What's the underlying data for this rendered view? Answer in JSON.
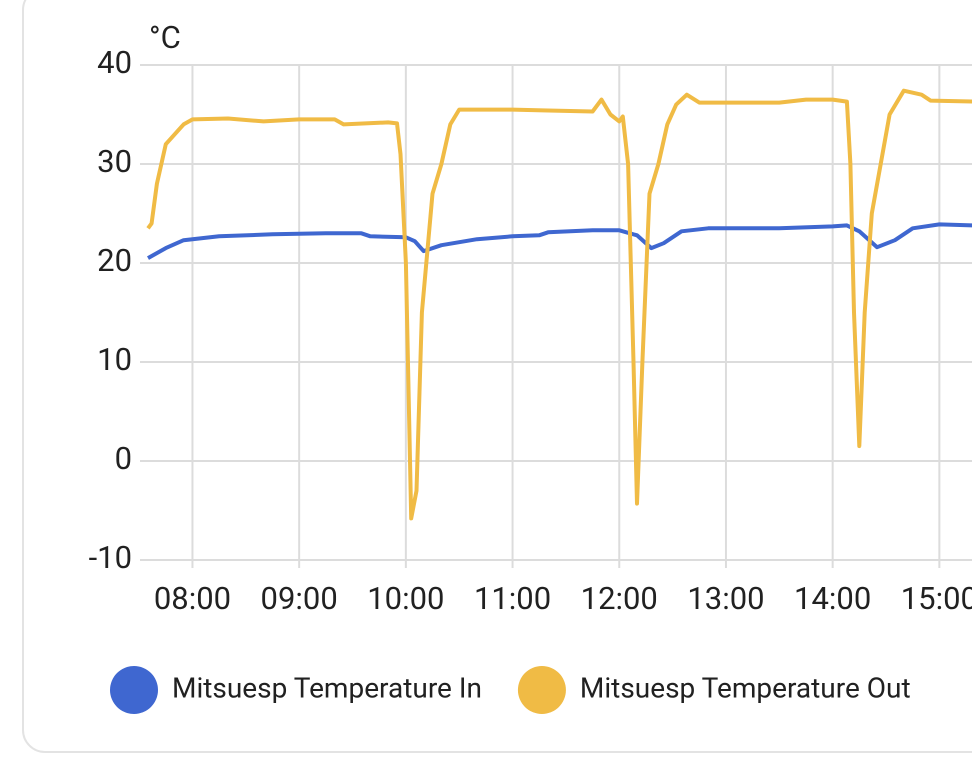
{
  "chart_data": {
    "type": "line",
    "y_axis_label": "°C",
    "ylim": [
      -10,
      40
    ],
    "yticks": [
      -10,
      0,
      10,
      20,
      30,
      40
    ],
    "xlim": [
      "07:35",
      "15:20"
    ],
    "xticks": [
      "08:00",
      "09:00",
      "10:00",
      "11:00",
      "12:00",
      "13:00",
      "14:00",
      "15:00"
    ],
    "grid": true,
    "legend": "bottom",
    "series": [
      {
        "name": "Mitsuesp Temperature In",
        "color": "#3f67d0",
        "x": [
          "07:35",
          "07:45",
          "07:55",
          "08:15",
          "08:45",
          "09:15",
          "09:35",
          "09:40",
          "10:00",
          "10:05",
          "10:10",
          "10:20",
          "10:40",
          "11:00",
          "11:15",
          "11:20",
          "11:45",
          "12:00",
          "12:10",
          "12:18",
          "12:25",
          "12:35",
          "12:50",
          "13:30",
          "14:00",
          "14:08",
          "14:15",
          "14:25",
          "14:35",
          "14:45",
          "15:00",
          "15:20"
        ],
        "values": [
          20.5,
          21.5,
          22.3,
          22.7,
          22.9,
          23.0,
          23.0,
          22.7,
          22.6,
          22.2,
          21.2,
          21.8,
          22.4,
          22.7,
          22.8,
          23.1,
          23.3,
          23.3,
          22.8,
          21.5,
          22.0,
          23.2,
          23.5,
          23.5,
          23.7,
          23.8,
          23.2,
          21.6,
          22.3,
          23.5,
          23.9,
          23.8
        ]
      },
      {
        "name": "Mitsuesp Temperature Out",
        "color": "#f0bb45",
        "x": [
          "07:35",
          "07:37",
          "07:40",
          "07:45",
          "07:55",
          "08:00",
          "08:20",
          "08:40",
          "09:00",
          "09:20",
          "09:25",
          "09:50",
          "09:55",
          "09:57",
          "10:00",
          "10:03",
          "10:06",
          "10:09",
          "10:15",
          "10:20",
          "10:25",
          "10:30",
          "10:45",
          "11:00",
          "11:20",
          "11:45",
          "11:50",
          "11:55",
          "12:00",
          "12:02",
          "12:05",
          "12:08",
          "12:10",
          "12:13",
          "12:17",
          "12:22",
          "12:27",
          "12:32",
          "12:38",
          "12:45",
          "13:00",
          "13:30",
          "13:45",
          "14:00",
          "14:08",
          "14:10",
          "14:12",
          "14:15",
          "14:18",
          "14:22",
          "14:27",
          "14:32",
          "14:40",
          "14:50",
          "14:55",
          "15:20"
        ],
        "values": [
          23.5,
          24.0,
          28,
          32,
          34,
          34.5,
          34.6,
          34.3,
          34.5,
          34.5,
          34.0,
          34.2,
          34.1,
          31,
          20,
          -5.8,
          -3,
          15,
          27,
          30,
          34,
          35.5,
          35.5,
          35.5,
          35.4,
          35.3,
          36.5,
          35,
          34.3,
          34.8,
          30,
          10,
          -4.3,
          10,
          27,
          30,
          34,
          36,
          37,
          36.2,
          36.2,
          36.2,
          36.5,
          36.5,
          36.3,
          30,
          15,
          1.5,
          15,
          25,
          30,
          35,
          37.4,
          37,
          36.4,
          36.3
        ]
      }
    ]
  }
}
